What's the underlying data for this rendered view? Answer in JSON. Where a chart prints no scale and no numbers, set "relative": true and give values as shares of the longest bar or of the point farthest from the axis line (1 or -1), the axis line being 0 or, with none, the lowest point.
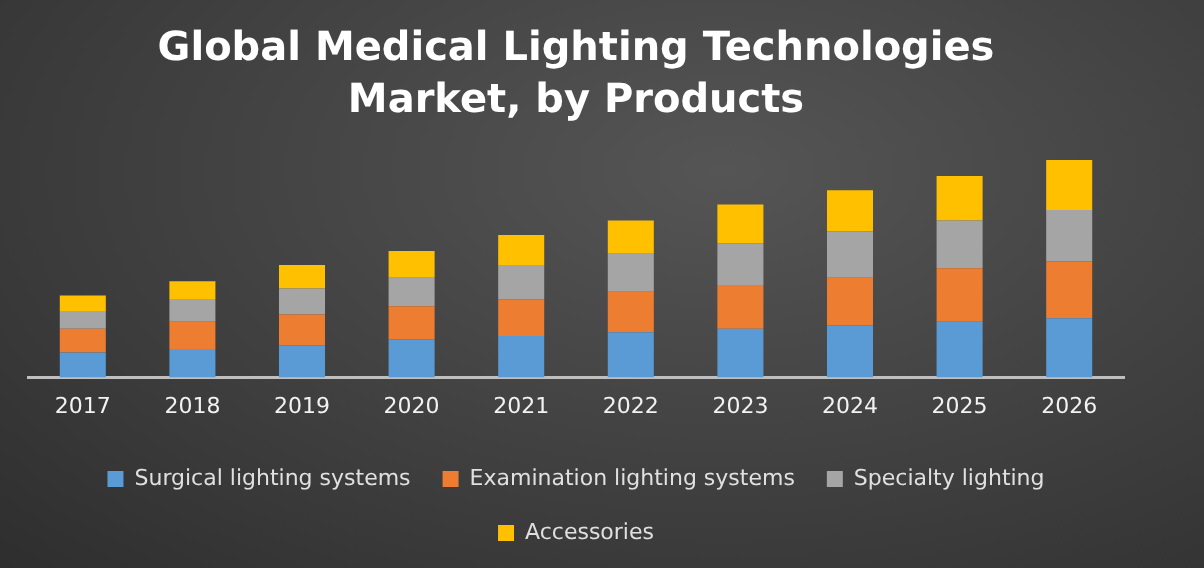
{
  "chart_data": {
    "type": "bar",
    "title": "Global Medical Lighting Technologies Market, by Products",
    "stacked": true,
    "relative": true,
    "legend": "bottom",
    "grid": false,
    "categories": [
      "2017",
      "2018",
      "2019",
      "2020",
      "2021",
      "2022",
      "2023",
      "2024",
      "2025",
      "2026"
    ],
    "series": [
      {
        "name": "Surgical lighting systems",
        "color": "#5b9bd5",
        "values": [
          0.115,
          0.131,
          0.148,
          0.175,
          0.191,
          0.208,
          0.224,
          0.24,
          0.257,
          0.273
        ]
      },
      {
        "name": "Examination lighting systems",
        "color": "#ed7d31",
        "values": [
          0.109,
          0.126,
          0.142,
          0.153,
          0.169,
          0.186,
          0.202,
          0.219,
          0.246,
          0.262
        ]
      },
      {
        "name": "Specialty lighting",
        "color": "#a5a5a5",
        "values": [
          0.082,
          0.104,
          0.12,
          0.131,
          0.158,
          0.175,
          0.191,
          0.213,
          0.219,
          0.235
        ]
      },
      {
        "name": "Accessories",
        "color": "#ffc000",
        "values": [
          0.071,
          0.082,
          0.107,
          0.123,
          0.137,
          0.153,
          0.178,
          0.189,
          0.205,
          0.23
        ]
      }
    ]
  }
}
